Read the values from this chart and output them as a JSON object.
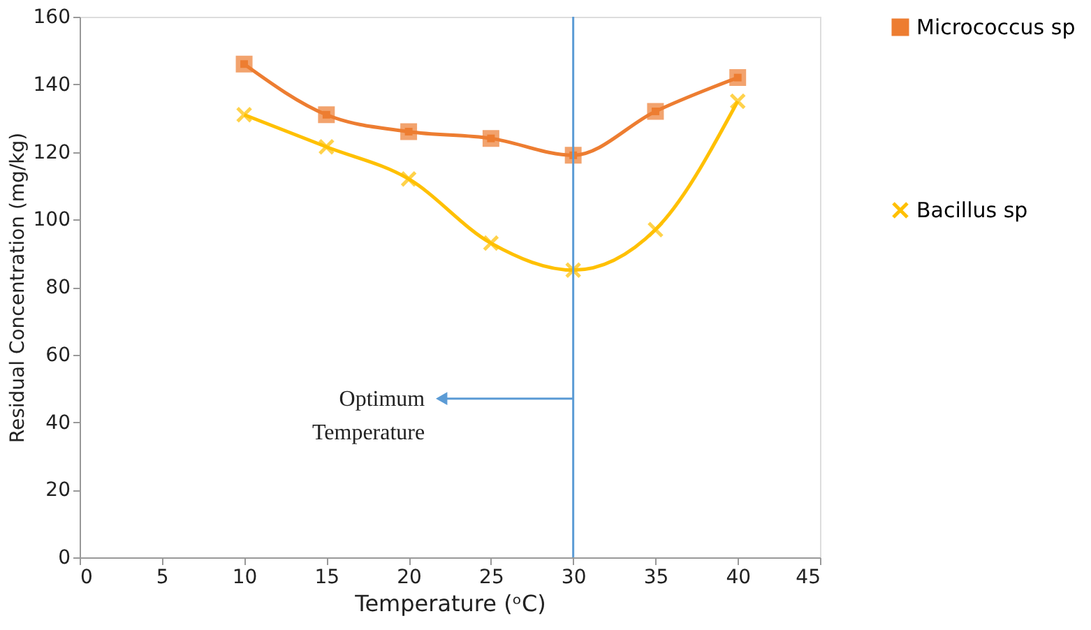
{
  "chart_data": {
    "type": "line",
    "xlabel": "Temperature (ᵒC)",
    "ylabel": "Residual Concentration (mg/kg)",
    "x": [
      10,
      15,
      20,
      25,
      30,
      35,
      40
    ],
    "series": [
      {
        "name": "Micrococcus sp",
        "color": "#ed7d31",
        "marker": "square",
        "values": [
          146,
          131,
          126,
          124,
          119,
          132,
          142
        ]
      },
      {
        "name": "Bacillus sp",
        "color": "#ffc000",
        "marker": "cross",
        "values": [
          131,
          121.5,
          112,
          93,
          85,
          97,
          135
        ]
      }
    ],
    "xlim": [
      0,
      45
    ],
    "xticks": [
      0,
      5,
      10,
      15,
      20,
      25,
      30,
      35,
      40,
      45
    ],
    "ylim": [
      0,
      160
    ],
    "yticks": [
      0,
      20,
      40,
      60,
      80,
      100,
      120,
      140,
      160
    ],
    "ref_lines": [
      {
        "axis": "x",
        "value": 30,
        "color": "#5b9bd5"
      }
    ],
    "annotations": [
      {
        "text": "Optimum\nTemperature",
        "x": 22,
        "y": 47
      }
    ],
    "legend": "right",
    "grid": false
  }
}
